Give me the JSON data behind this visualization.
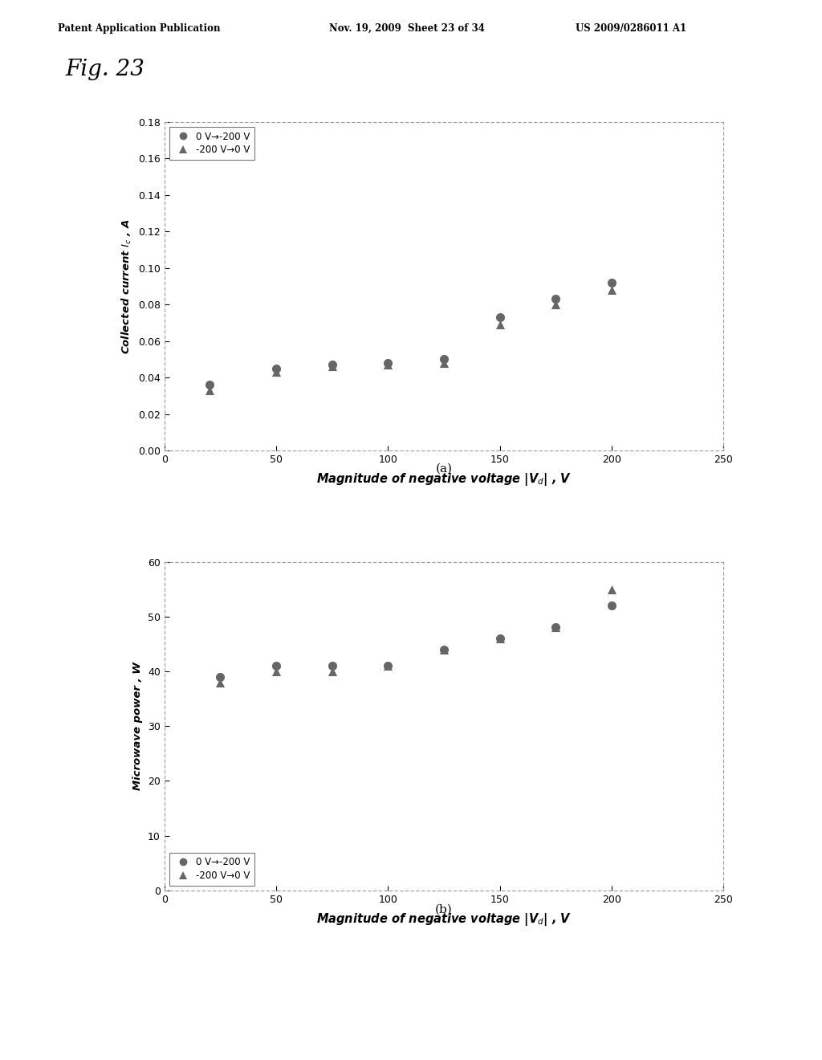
{
  "fig_label": "Fig. 23",
  "header_left": "Patent Application Publication",
  "header_mid": "Nov. 19, 2009  Sheet 23 of 34",
  "header_right": "US 2009/0286011 A1",
  "plot_a": {
    "xlabel": "Magnitude of negative voltage |V$_d$| , V",
    "ylabel": "Collected current $I_c$ , A",
    "xlim": [
      0,
      250
    ],
    "ylim": [
      0,
      0.18
    ],
    "xticks": [
      0,
      50,
      100,
      150,
      200,
      250
    ],
    "yticks": [
      0,
      0.02,
      0.04,
      0.06,
      0.08,
      0.1,
      0.12,
      0.14,
      0.16,
      0.18
    ],
    "series1_label": "0 V→-200 V",
    "series2_label": "▲-200 V→0 V",
    "series1_x": [
      20,
      50,
      75,
      100,
      125,
      150,
      175,
      200
    ],
    "series1_y": [
      0.036,
      0.045,
      0.047,
      0.048,
      0.05,
      0.073,
      0.083,
      0.092
    ],
    "series2_x": [
      20,
      50,
      75,
      100,
      125,
      150,
      175,
      200
    ],
    "series2_y": [
      0.033,
      0.043,
      0.046,
      0.047,
      0.048,
      0.069,
      0.08,
      0.088
    ],
    "caption": "(a)"
  },
  "plot_b": {
    "xlabel": "Magnitude of negative voltage |V$_d$| , V",
    "ylabel": "Microwave power , W",
    "xlim": [
      0,
      250
    ],
    "ylim": [
      0,
      60
    ],
    "xticks": [
      0,
      50,
      100,
      150,
      200,
      250
    ],
    "yticks": [
      0,
      10,
      20,
      30,
      40,
      50,
      60
    ],
    "series1_label": "0 V→-200 V",
    "series2_label": "▲-200 V→0 V",
    "series1_x": [
      25,
      50,
      75,
      100,
      125,
      150,
      175,
      200
    ],
    "series1_y": [
      39,
      41,
      41,
      41,
      44,
      46,
      48,
      52
    ],
    "series2_x": [
      25,
      50,
      75,
      100,
      125,
      150,
      175,
      200
    ],
    "series2_y": [
      38,
      40,
      40,
      41,
      44,
      46,
      48,
      55
    ],
    "caption": "(b)"
  },
  "marker_circle": "o",
  "marker_triangle": "^",
  "marker_color": "#666666",
  "marker_size": 8,
  "background_color": "#ffffff",
  "plot_bg": "#ffffff",
  "border_color": "#999999"
}
